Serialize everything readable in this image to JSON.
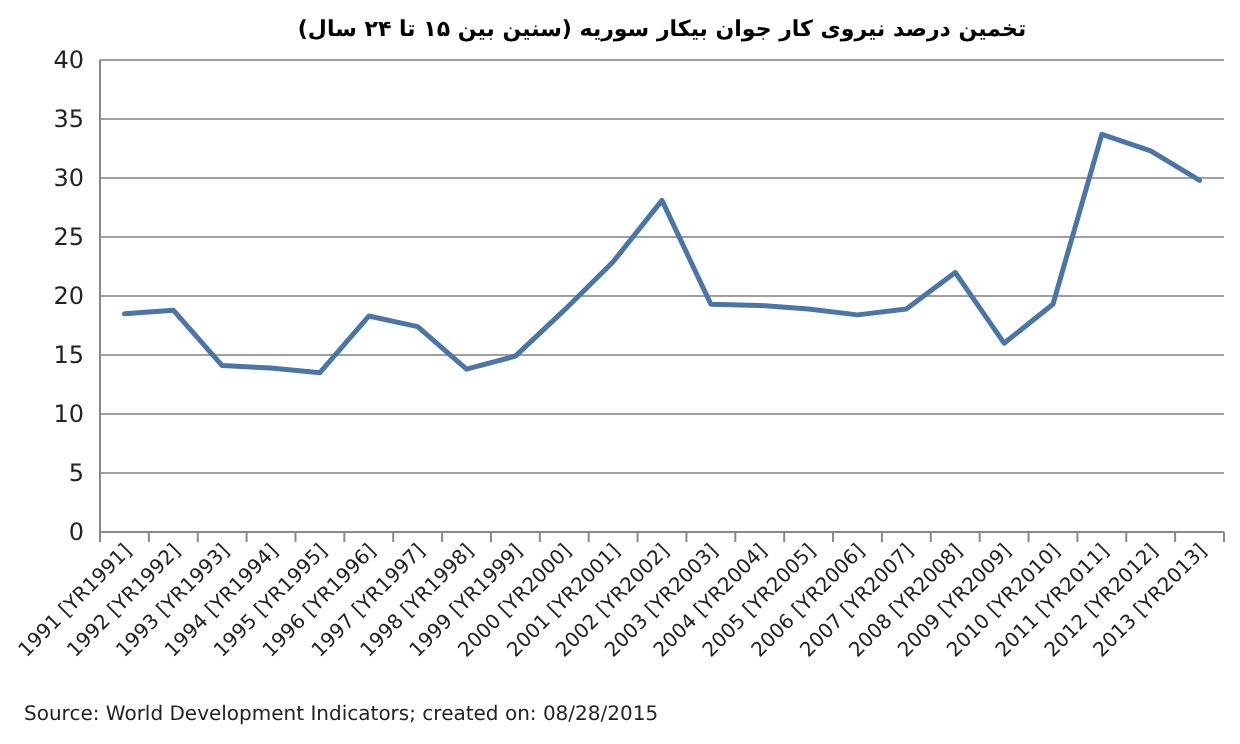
{
  "chart_data": {
    "type": "line",
    "title": "تخمین درصد نیروی کار جوان بیکار سوریه  (سنین بین ۱۵ تا ۲۴ سال)",
    "categories": [
      "1991 [YR1991]",
      "1992 [YR1992]",
      "1993 [YR1993]",
      "1994 [YR1994]",
      "1995 [YR1995]",
      "1996 [YR1996]",
      "1997 [YR1997]",
      "1998 [YR1998]",
      "1999 [YR1999]",
      "2000 [YR2000]",
      "2001 [YR2001]",
      "2002 [YR2002]",
      "2003 [YR2003]",
      "2004 [YR2004]",
      "2005 [YR2005]",
      "2006 [YR2006]",
      "2007 [YR2007]",
      "2008 [YR2008]",
      "2009 [YR2009]",
      "2010 [YR2010]",
      "2011 [YR2011]",
      "2012 [YR2012]",
      "2013 [YR2013]"
    ],
    "series": [
      {
        "color": "#4a75a8",
        "values": [
          18.5,
          18.8,
          14.1,
          13.9,
          13.5,
          18.3,
          17.4,
          13.8,
          14.9,
          18.8,
          22.9,
          28.1,
          19.3,
          19.2,
          18.9,
          18.4,
          18.9,
          22.0,
          16.0,
          19.3,
          33.7,
          32.3,
          29.8
        ]
      }
    ],
    "ylim": [
      0,
      40
    ],
    "yticks": [
      0,
      5,
      10,
      15,
      20,
      25,
      30,
      35,
      40
    ],
    "grid": "y",
    "marker": "none",
    "line_style": "solid",
    "annotations": [
      "Source: World Development Indicators; created on: 08/28/2015"
    ]
  }
}
